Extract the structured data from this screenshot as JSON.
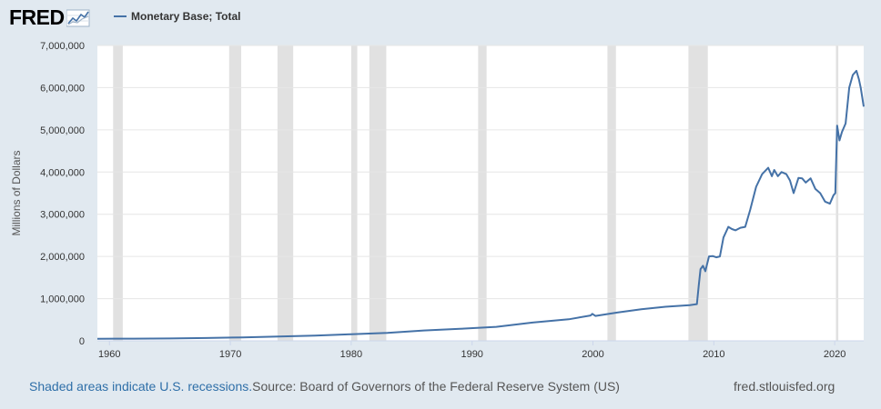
{
  "header": {
    "logo_text": "FRED",
    "series_label": "Monetary Base; Total"
  },
  "footer": {
    "recession_note": "Shaded areas indicate U.S. recessions.",
    "source": "Source: Board of Governors of the Federal Reserve System (US)",
    "site": "fred.stlouisfed.org"
  },
  "colors": {
    "line": "#4572a7",
    "recession": "#e1e1e1",
    "background": "#e1e9f0",
    "plot_bg": "#ffffff"
  },
  "chart_data": {
    "type": "line",
    "title": "",
    "xlabel": "",
    "ylabel": "Millions of Dollars",
    "xlim": [
      1959,
      2022.4
    ],
    "ylim": [
      0,
      7000000
    ],
    "grid": true,
    "legend": "top-left",
    "y_ticks": [
      0,
      1000000,
      2000000,
      3000000,
      4000000,
      5000000,
      6000000,
      7000000
    ],
    "y_tick_labels": [
      "0",
      "1,000,000",
      "2,000,000",
      "3,000,000",
      "4,000,000",
      "5,000,000",
      "6,000,000",
      "7,000,000"
    ],
    "x_ticks": [
      1960,
      1970,
      1980,
      1990,
      2000,
      2010,
      2020
    ],
    "x_tick_labels": [
      "1960",
      "1970",
      "1980",
      "1990",
      "2000",
      "2010",
      "2020"
    ],
    "recessions": [
      [
        1960.3,
        1961.1
      ],
      [
        1969.9,
        1970.9
      ],
      [
        1973.9,
        1975.2
      ],
      [
        1980.0,
        1980.5
      ],
      [
        1981.5,
        1982.9
      ],
      [
        1990.5,
        1991.2
      ],
      [
        2001.2,
        2001.9
      ],
      [
        2007.9,
        2009.5
      ],
      [
        2020.1,
        2020.3
      ]
    ],
    "series": [
      {
        "name": "Monetary Base; Total",
        "x": [
          1959.0,
          1962.0,
          1965.0,
          1968.0,
          1971.0,
          1974.0,
          1977.0,
          1980.0,
          1983.0,
          1986.0,
          1989.0,
          1992.0,
          1995.0,
          1998.0,
          1999.8,
          1999.95,
          2000.2,
          2002.0,
          2004.0,
          2006.0,
          2008.0,
          2008.6,
          2008.75,
          2008.9,
          2009.1,
          2009.3,
          2009.6,
          2009.9,
          2010.2,
          2010.5,
          2010.8,
          2011.2,
          2011.5,
          2011.8,
          2012.2,
          2012.6,
          2013.0,
          2013.5,
          2014.0,
          2014.5,
          2014.8,
          2015.0,
          2015.3,
          2015.6,
          2016.0,
          2016.3,
          2016.6,
          2017.0,
          2017.3,
          2017.6,
          2018.0,
          2018.4,
          2018.8,
          2019.2,
          2019.6,
          2019.9,
          2020.05,
          2020.2,
          2020.4,
          2020.6,
          2020.9,
          2021.2,
          2021.5,
          2021.8,
          2022.0,
          2022.15,
          2022.4
        ],
        "values": [
          50000,
          52000,
          57000,
          67000,
          82000,
          104000,
          124000,
          158000,
          190000,
          246000,
          285000,
          332000,
          432000,
          510000,
          600000,
          640000,
          590000,
          670000,
          750000,
          808000,
          845000,
          870000,
          1300000,
          1700000,
          1780000,
          1650000,
          2000000,
          2010000,
          1980000,
          2000000,
          2450000,
          2700000,
          2650000,
          2620000,
          2680000,
          2700000,
          3100000,
          3650000,
          3950000,
          4100000,
          3900000,
          4050000,
          3900000,
          4000000,
          3950000,
          3800000,
          3500000,
          3860000,
          3850000,
          3750000,
          3850000,
          3600000,
          3500000,
          3300000,
          3250000,
          3450000,
          3500000,
          5100000,
          4750000,
          4950000,
          5150000,
          6000000,
          6300000,
          6400000,
          6200000,
          6000000,
          5550000
        ]
      }
    ]
  }
}
